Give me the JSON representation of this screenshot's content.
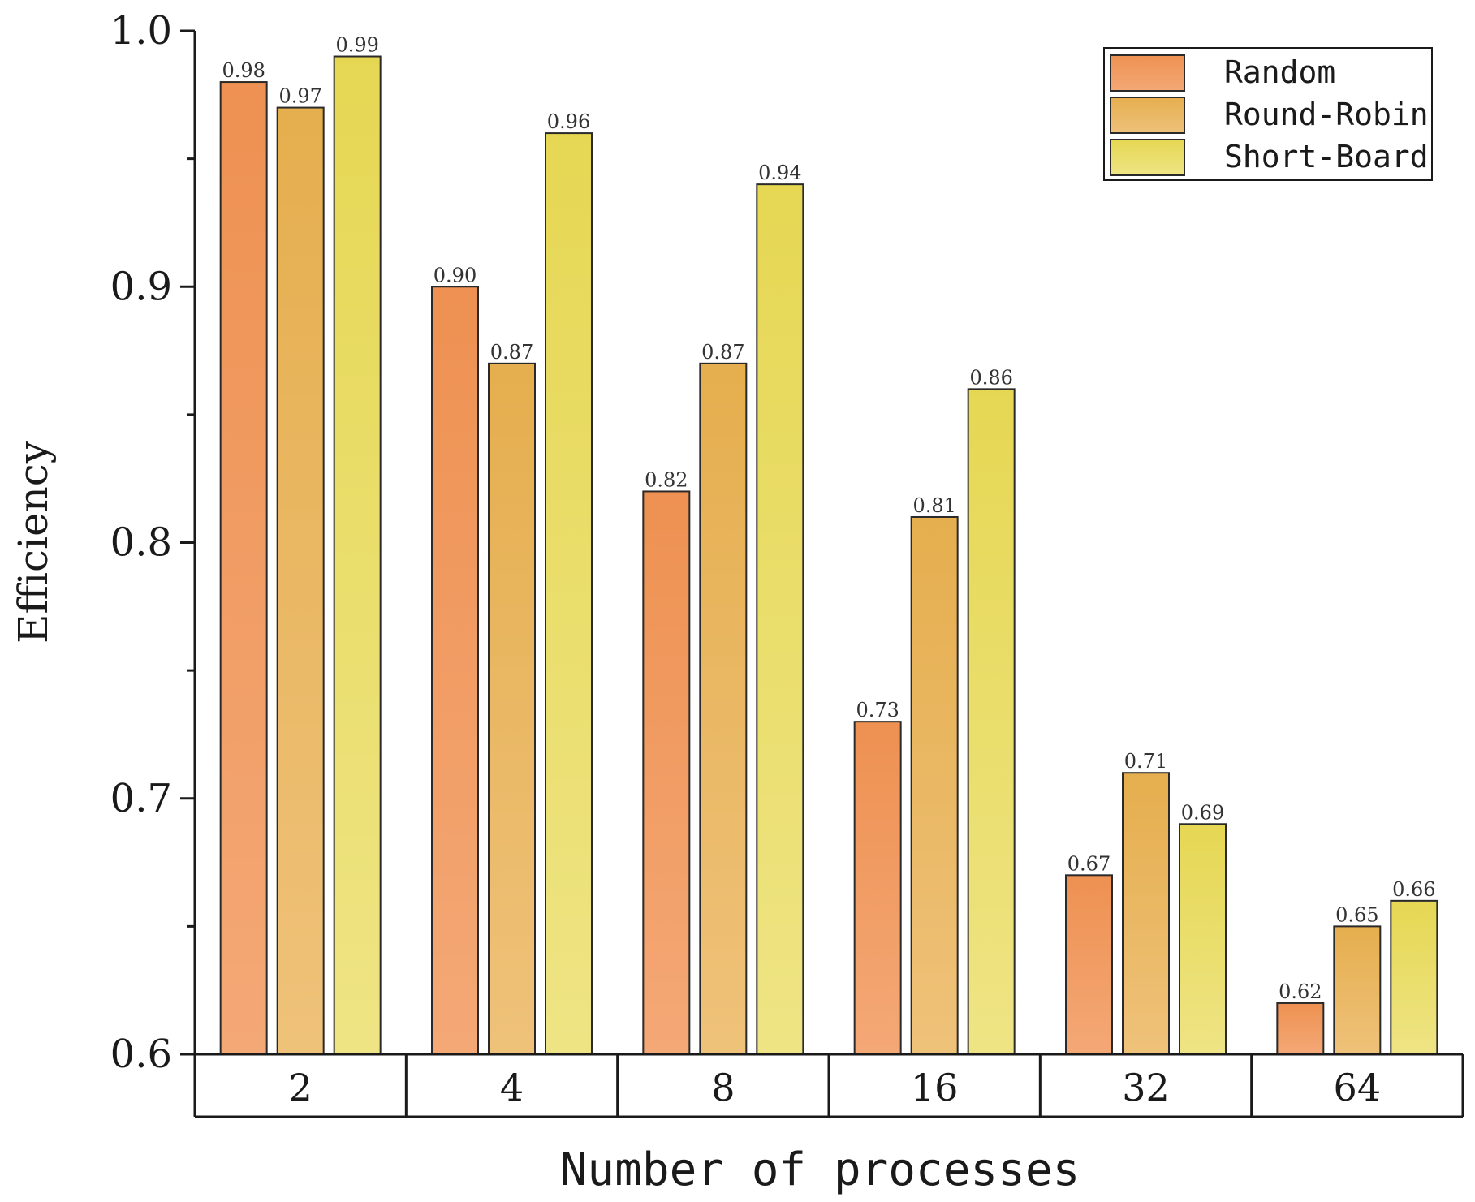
{
  "chart_data": {
    "type": "bar",
    "title": "",
    "xlabel": "Number of processes",
    "ylabel": "Efficiency",
    "categories": [
      "2",
      "4",
      "8",
      "16",
      "32",
      "64"
    ],
    "ylim": [
      0.6,
      1.0
    ],
    "yticks": [
      0.6,
      0.7,
      0.8,
      0.9,
      1.0
    ],
    "ytick_labels": [
      "0.6",
      "0.7",
      "0.8",
      "0.9",
      "1.0"
    ],
    "legend_position": "top-right",
    "series": [
      {
        "name": "Random",
        "color": "#F0955A",
        "values": [
          0.98,
          0.9,
          0.82,
          0.73,
          0.67,
          0.62
        ],
        "labels": [
          "0.98",
          "0.90",
          "0.82",
          "0.73",
          "0.67",
          "0.62"
        ]
      },
      {
        "name": "Round-Robin",
        "color": "#E9B257",
        "values": [
          0.97,
          0.87,
          0.87,
          0.81,
          0.71,
          0.65
        ],
        "labels": [
          "0.97",
          "0.87",
          "0.87",
          "0.81",
          "0.71",
          "0.65"
        ]
      },
      {
        "name": "Short-Board",
        "color": "#E8DA5E",
        "values": [
          0.99,
          0.96,
          0.94,
          0.86,
          0.69,
          0.66
        ],
        "labels": [
          "0.99",
          "0.96",
          "0.94",
          "0.86",
          "0.69",
          "0.66"
        ]
      }
    ]
  }
}
